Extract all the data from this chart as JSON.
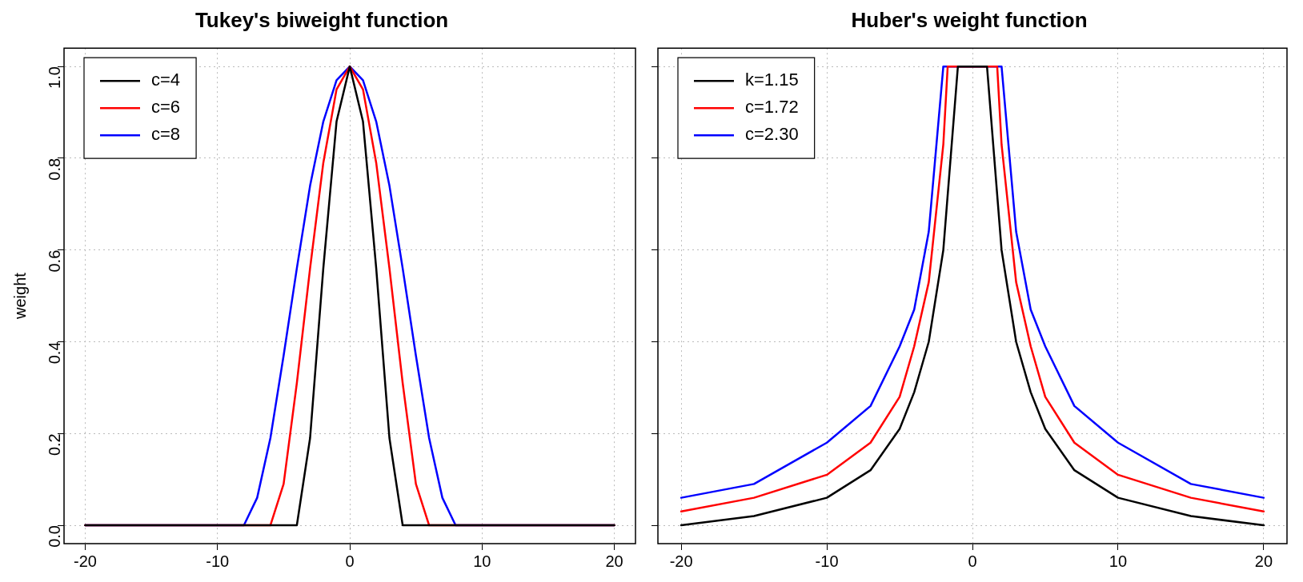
{
  "chart_data": [
    {
      "type": "line",
      "title": "Tukey's biweight function",
      "ylabel": "weight",
      "xlim": [
        -21.6,
        21.6
      ],
      "ylim": [
        -0.04,
        1.04
      ],
      "xticks": [
        -20,
        -10,
        0,
        10,
        20
      ],
      "yticks": [
        {
          "value": 0,
          "label": "0.0"
        },
        0.2,
        0.4,
        0.6,
        0.8,
        {
          "value": 1,
          "label": "1.0"
        }
      ],
      "grid": true,
      "legend": "top left",
      "line_style": "solid",
      "marker": "none",
      "series": [
        {
          "name": "c=4",
          "color": "#000000",
          "x": [
            -20,
            -4,
            -3,
            -2,
            -1,
            0,
            1,
            2,
            3,
            4,
            20
          ],
          "values": [
            0,
            0,
            0.19,
            0.56,
            0.88,
            1,
            0.88,
            0.56,
            0.19,
            0,
            0
          ]
        },
        {
          "name": "c=6",
          "color": "#ff0000",
          "x": [
            -20,
            -6,
            -5,
            -4,
            -3,
            -2,
            -1,
            0,
            1,
            2,
            3,
            4,
            5,
            6,
            20
          ],
          "values": [
            0,
            0,
            0.09,
            0.31,
            0.56,
            0.79,
            0.95,
            1,
            0.95,
            0.79,
            0.56,
            0.31,
            0.09,
            0,
            0
          ]
        },
        {
          "name": "c=8",
          "color": "#0000ff",
          "x": [
            -20,
            -8,
            -7,
            -6,
            -5,
            -4,
            -3,
            -2,
            -1,
            0,
            1,
            2,
            3,
            4,
            5,
            6,
            7,
            8,
            20
          ],
          "values": [
            0,
            0,
            0.06,
            0.19,
            0.37,
            0.56,
            0.74,
            0.88,
            0.97,
            1,
            0.97,
            0.88,
            0.74,
            0.56,
            0.37,
            0.19,
            0.06,
            0,
            0
          ]
        }
      ]
    },
    {
      "type": "line",
      "title": "Huber's weight function",
      "xlim": [
        -21.6,
        21.6
      ],
      "ylim": [
        -0.04,
        1.04
      ],
      "xticks": [
        -20,
        -10,
        0,
        10,
        20
      ],
      "yticks": [
        0,
        0.2,
        0.4,
        0.6,
        0.8,
        1
      ],
      "tick_labels": "x",
      "grid": true,
      "legend": "top left",
      "line_style": "solid",
      "marker": "none",
      "series": [
        {
          "name": "k=1.15",
          "color": "#000000",
          "x": [
            -20,
            -15,
            -10,
            -7,
            -5,
            -4,
            -3,
            -2,
            -1,
            0,
            1,
            2,
            3,
            4,
            5,
            7,
            10,
            15,
            20
          ],
          "values": [
            0,
            0.02,
            0.06,
            0.12,
            0.21,
            0.29,
            0.4,
            0.6,
            1,
            1,
            1,
            0.6,
            0.4,
            0.29,
            0.21,
            0.12,
            0.06,
            0.02,
            0
          ]
        },
        {
          "name": "c=1.72",
          "color": "#ff0000",
          "x": [
            -20,
            -15,
            -10,
            -7,
            -5,
            -4,
            -3,
            -2,
            -1.7,
            1.7,
            2,
            3,
            4,
            5,
            7,
            10,
            15,
            20
          ],
          "values": [
            0.03,
            0.06,
            0.11,
            0.18,
            0.28,
            0.39,
            0.53,
            0.83,
            1,
            1,
            0.83,
            0.53,
            0.39,
            0.28,
            0.18,
            0.11,
            0.06,
            0.03
          ]
        },
        {
          "name": "c=2.30",
          "color": "#0000ff",
          "x": [
            -20,
            -15,
            -10,
            -7,
            -5,
            -4,
            -3,
            -2,
            2,
            3,
            4,
            5,
            7,
            10,
            15,
            20
          ],
          "values": [
            0.06,
            0.09,
            0.18,
            0.26,
            0.39,
            0.47,
            0.64,
            1,
            1,
            0.64,
            0.47,
            0.39,
            0.26,
            0.18,
            0.09,
            0.06
          ]
        }
      ]
    }
  ]
}
